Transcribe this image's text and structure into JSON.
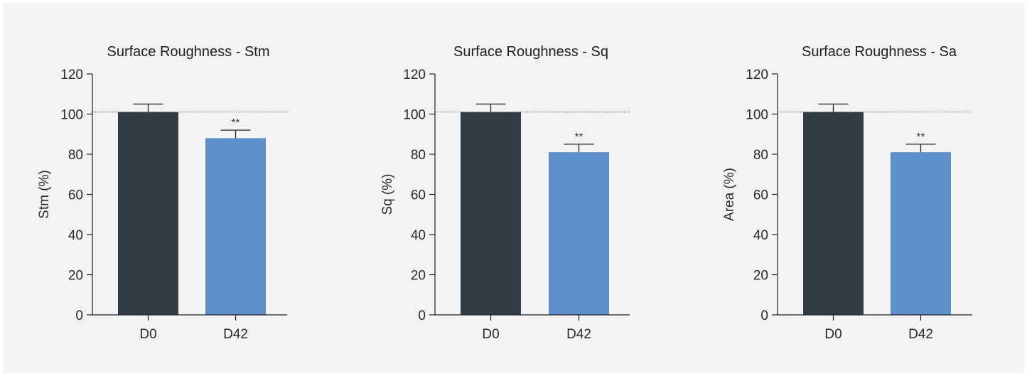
{
  "chart_data": [
    {
      "type": "bar",
      "title": "Surface Roughness - Stm",
      "ylabel": "Stm (%)",
      "xlabel": "",
      "categories": [
        "D0",
        "D42"
      ],
      "values": [
        101,
        88
      ],
      "errors": [
        4,
        4
      ],
      "annotations": [
        "",
        "**"
      ],
      "ylim": [
        0,
        120
      ],
      "yticks": [
        0,
        20,
        40,
        60,
        80,
        100,
        120
      ],
      "reference_line": 101,
      "colors": [
        "#313c46",
        "#5f8fcb"
      ]
    },
    {
      "type": "bar",
      "title": "Surface Roughness - Sq",
      "ylabel": "Sq (%)",
      "xlabel": "",
      "categories": [
        "D0",
        "D42"
      ],
      "values": [
        101,
        81
      ],
      "errors": [
        4,
        4
      ],
      "annotations": [
        "",
        "**"
      ],
      "ylim": [
        0,
        120
      ],
      "yticks": [
        0,
        20,
        40,
        60,
        80,
        100,
        120
      ],
      "reference_line": 101,
      "colors": [
        "#313c46",
        "#5f8fcb"
      ]
    },
    {
      "type": "bar",
      "title": "Surface Roughness - Sa",
      "ylabel": "Area (%)",
      "xlabel": "",
      "categories": [
        "D0",
        "D42"
      ],
      "values": [
        101,
        81
      ],
      "errors": [
        4,
        4
      ],
      "annotations": [
        "",
        "**"
      ],
      "ylim": [
        0,
        120
      ],
      "yticks": [
        0,
        20,
        40,
        60,
        80,
        100,
        120
      ],
      "reference_line": 101,
      "colors": [
        "#313c46",
        "#5f8fcb"
      ]
    }
  ]
}
